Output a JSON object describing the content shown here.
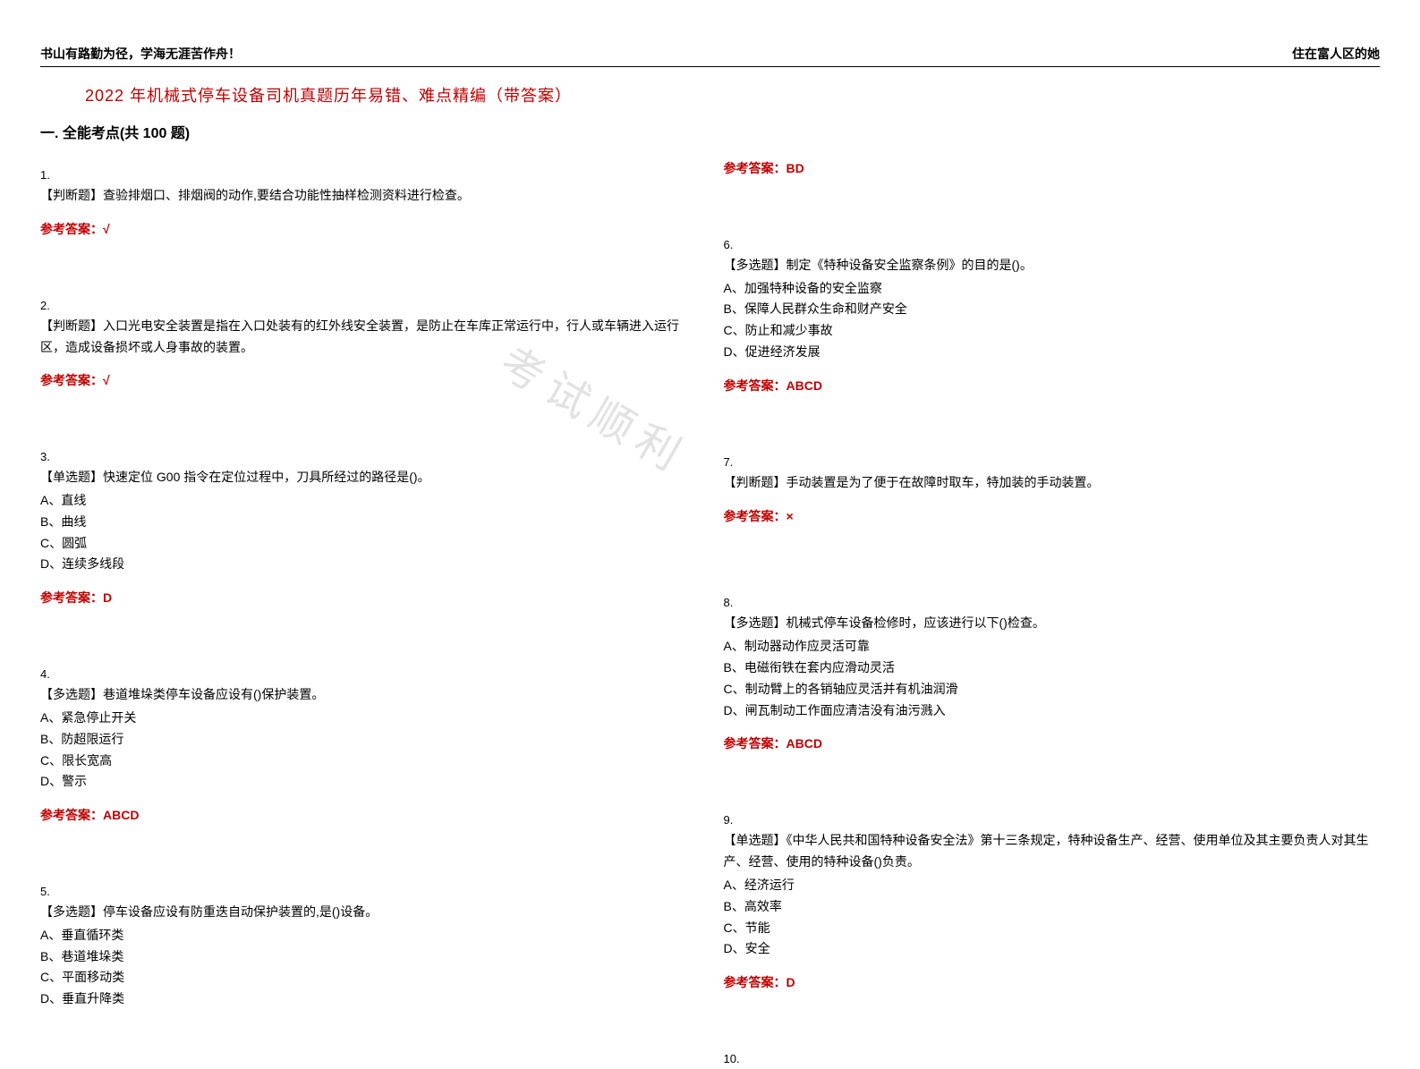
{
  "header": {
    "left": "书山有路勤为径，学海无涯苦作舟！",
    "right": "住在富人区的她"
  },
  "title": "2022 年机械式停车设备司机真题历年易错、难点精编（带答案）",
  "section": "一. 全能考点(共 100 题)",
  "watermark": "考试顺利",
  "answer_label": "参考答案：",
  "questions_left": [
    {
      "num": "1.",
      "text": "【判断题】查验排烟口、排烟阀的动作,要结合功能性抽样检测资料进行检查。",
      "options": [],
      "answer": "√"
    },
    {
      "num": "2.",
      "text": "【判断题】入口光电安全装置是指在入口处装有的红外线安全装置，是防止在车库正常运行中，行人或车辆进入运行区，造成设备损坏或人身事故的装置。",
      "options": [],
      "answer": "√"
    },
    {
      "num": "3.",
      "text": "【单选题】快速定位 G00 指令在定位过程中，刀具所经过的路径是()。",
      "options": [
        "A、直线",
        "B、曲线",
        "C、圆弧",
        "D、连续多线段"
      ],
      "answer": "D"
    },
    {
      "num": "4.",
      "text": "【多选题】巷道堆垛类停车设备应设有()保护装置。",
      "options": [
        "A、紧急停止开关",
        "B、防超限运行",
        "C、限长宽高",
        "D、警示"
      ],
      "answer": "ABCD"
    },
    {
      "num": "5.",
      "text": "【多选题】停车设备应设有防重迭自动保护装置的,是()设备。",
      "options": [
        "A、垂直循环类",
        "B、巷道堆垛类",
        "C、平面移动类",
        "D、垂直升降类"
      ],
      "answer": ""
    }
  ],
  "questions_right": [
    {
      "num": "",
      "text": "",
      "options": [],
      "answer": "BD"
    },
    {
      "num": "6.",
      "text": "【多选题】制定《特种设备安全监察条例》的目的是()。",
      "options": [
        "A、加强特种设备的安全监察",
        "B、保障人民群众生命和财产安全",
        "C、防止和减少事故",
        "D、促进经济发展"
      ],
      "answer": "ABCD"
    },
    {
      "num": "7.",
      "text": "【判断题】手动装置是为了便于在故障时取车，特加装的手动装置。",
      "options": [],
      "answer": "×"
    },
    {
      "num": "8.",
      "text": "【多选题】机械式停车设备检修时，应该进行以下()检查。",
      "options": [
        "A、制动器动作应灵活可靠",
        "B、电磁衔铁在套内应滑动灵活",
        "C、制动臂上的各销轴应灵活并有机油润滑",
        "D、闸瓦制动工作面应清洁没有油污溅入"
      ],
      "answer": "ABCD"
    },
    {
      "num": "9.",
      "text": "【单选题】《中华人民共和国特种设备安全法》第十三条规定，特种设备生产、经营、使用单位及其主要负责人对其生产、经营、使用的特种设备()负责。",
      "options": [
        "A、经济运行",
        "B、高效率",
        "C、节能",
        "D、安全"
      ],
      "answer": "D"
    },
    {
      "num": "10.",
      "text": "",
      "options": [],
      "answer": ""
    }
  ],
  "colors": {
    "title": "#c00000",
    "answer": "#c00000",
    "text": "#000000",
    "watermark": "#d0d0d0"
  }
}
